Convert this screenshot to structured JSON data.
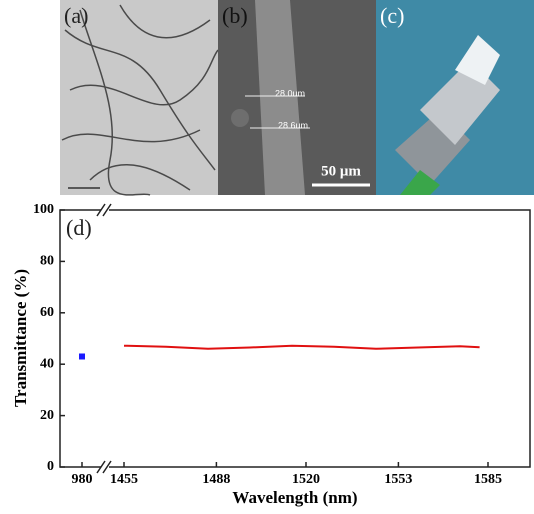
{
  "panels": [
    {
      "label": "(a)"
    },
    {
      "label": "(b)",
      "annotations": [
        "28.0um",
        "28.6um"
      ],
      "scale_bar": "50 μm"
    },
    {
      "label": "(c)"
    }
  ],
  "chart_data": {
    "type": "line",
    "panel_label": "(d)",
    "xlabel": "Wavelength (nm)",
    "ylabel": "Transmittance (%)",
    "ylim": [
      0,
      100
    ],
    "yticks": [
      0,
      20,
      40,
      60,
      80,
      100
    ],
    "x_segments": [
      {
        "xlim": [
          970,
          990
        ],
        "xticks": [
          980
        ]
      },
      {
        "xlim": [
          1450,
          1600
        ],
        "xticks": [
          1455,
          1488,
          1520,
          1553,
          1585
        ]
      }
    ],
    "series": [
      {
        "color": "#1a1aff",
        "marker": "square",
        "segment": 0,
        "x": [
          980
        ],
        "values": [
          43
        ]
      },
      {
        "color": "#e01010",
        "segment": 1,
        "x": [
          1455,
          1470,
          1485,
          1500,
          1515,
          1530,
          1545,
          1560,
          1575,
          1582
        ],
        "values": [
          47.2,
          46.8,
          46.0,
          46.5,
          47.2,
          46.8,
          46.0,
          46.5,
          47.0,
          46.6
        ]
      }
    ]
  }
}
